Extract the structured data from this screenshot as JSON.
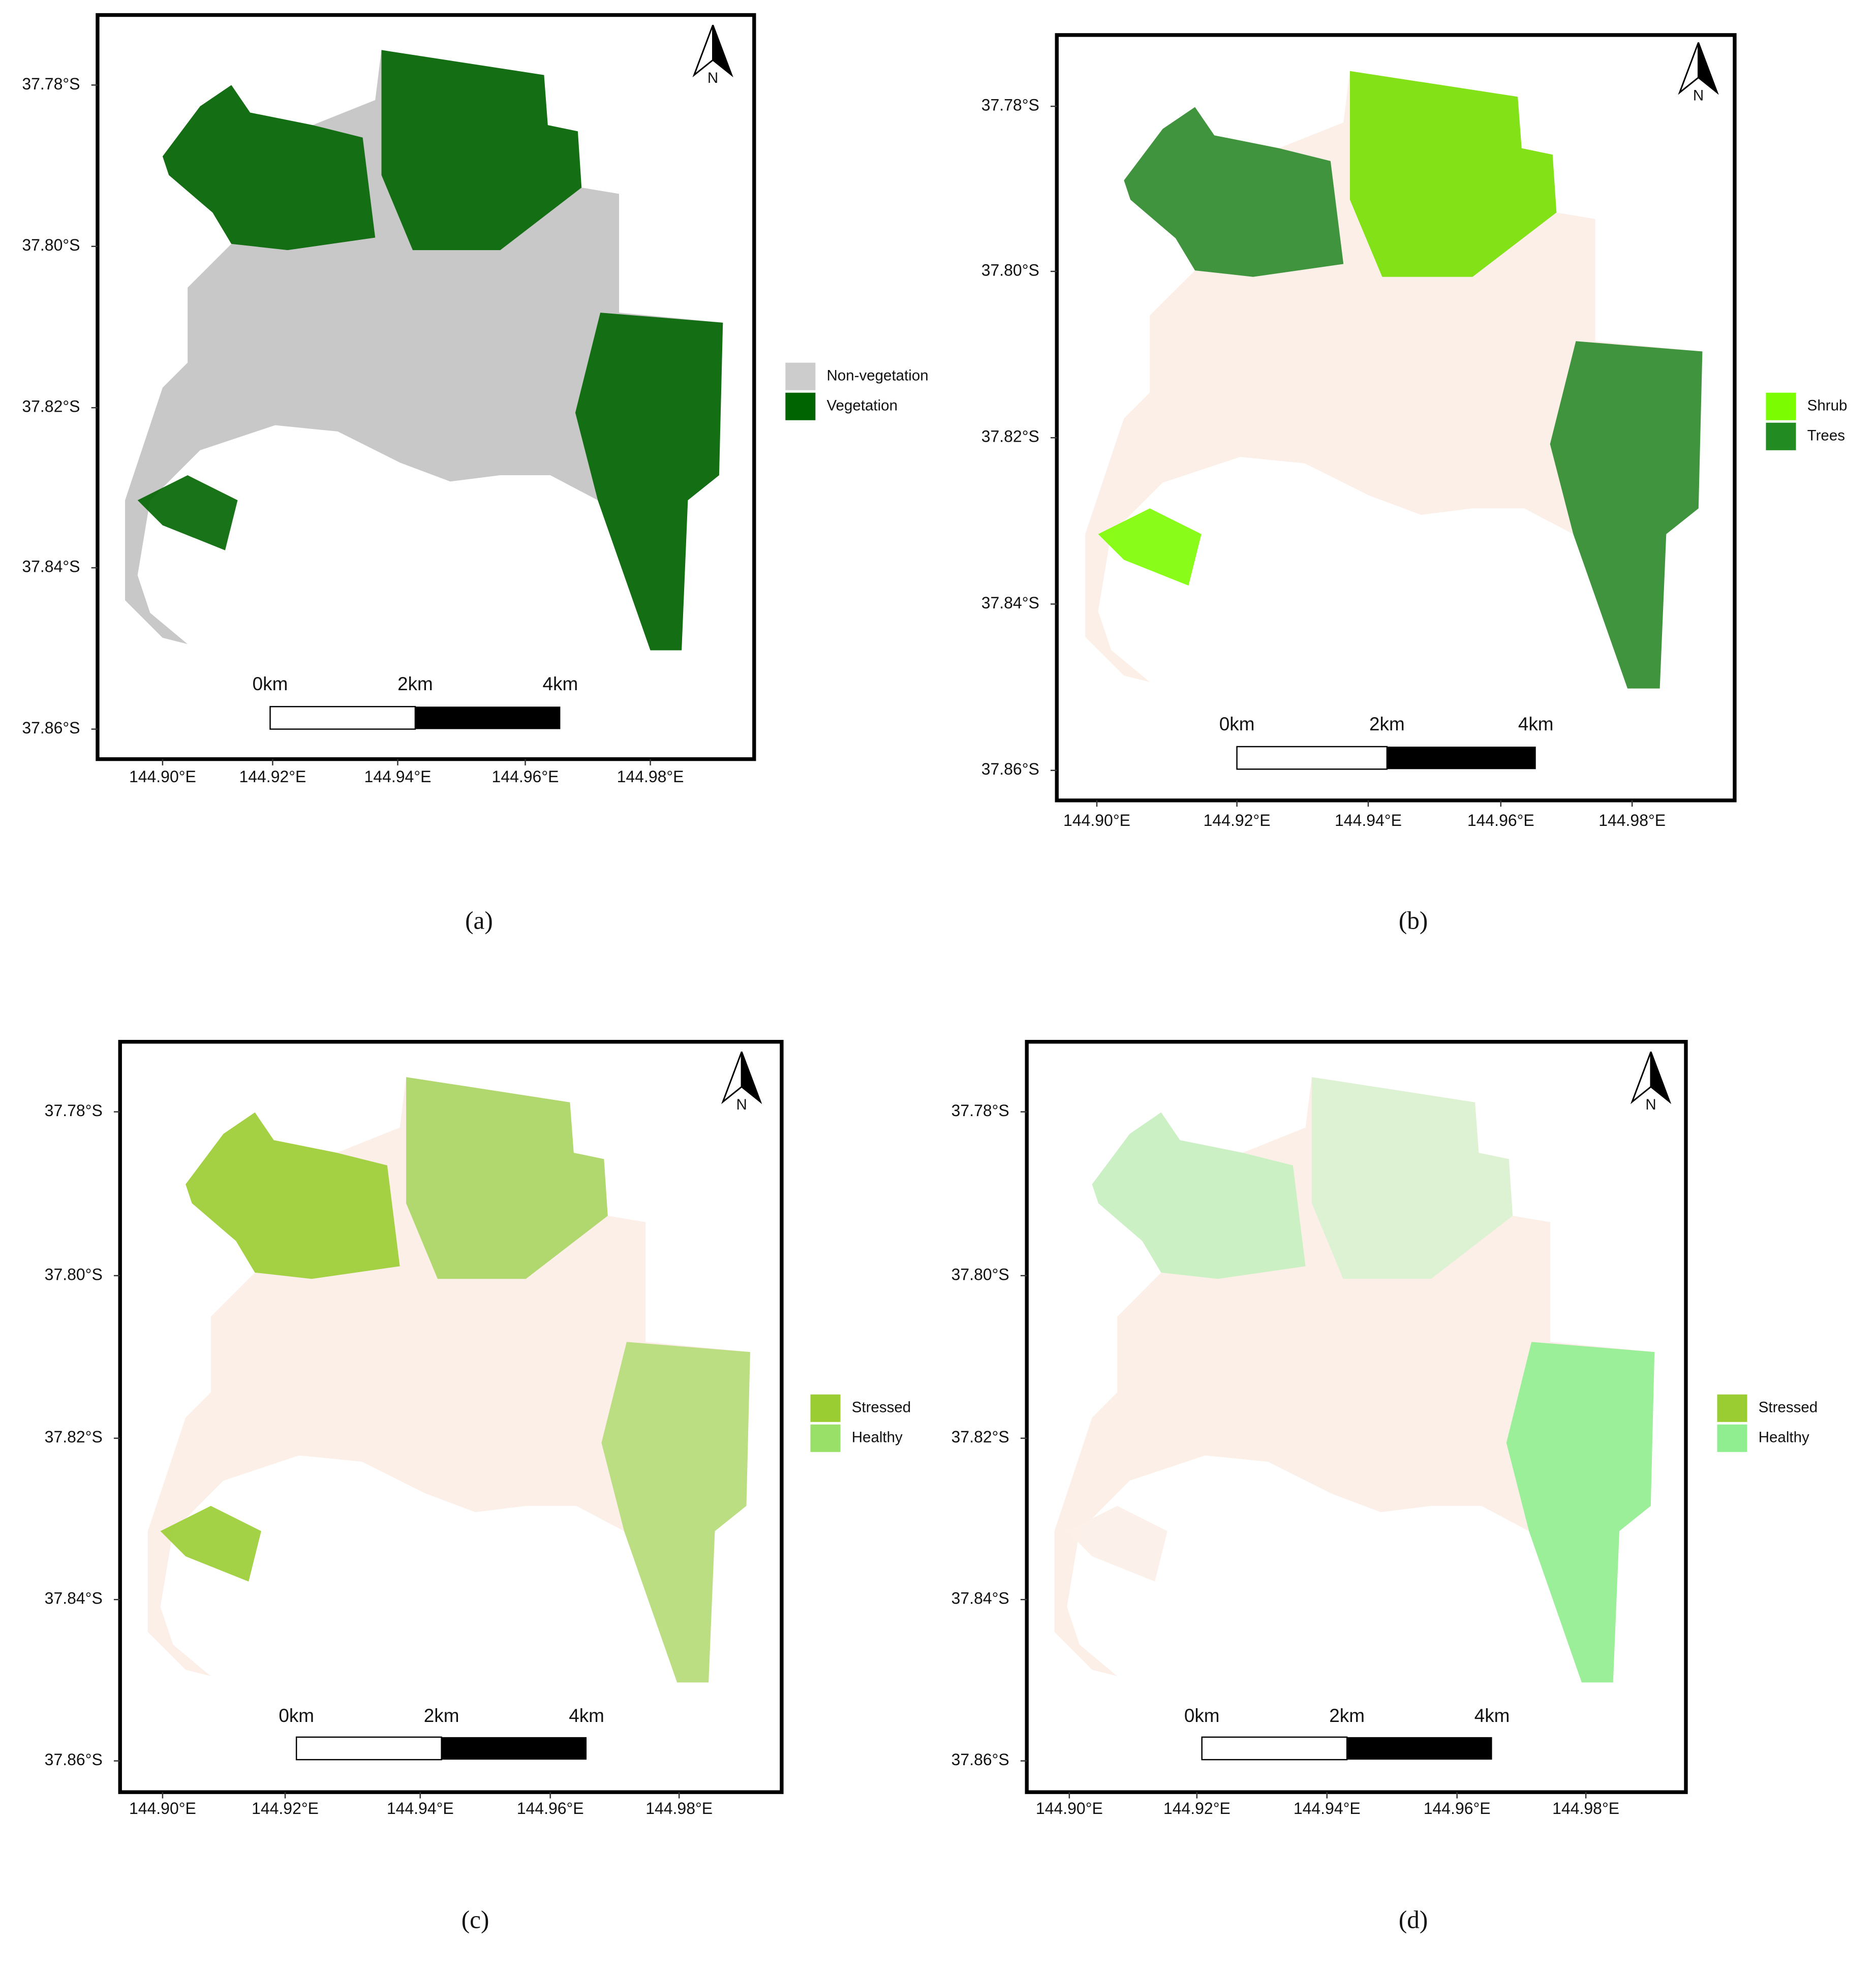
{
  "panels": [
    {
      "caption": "(a)",
      "legend": [
        "Non-vegetation",
        "Vegetation"
      ],
      "lat_labels": [
        "37.78°S",
        "37.80°S",
        "37.82°S",
        "37.84°S",
        "37.86°S"
      ],
      "lon_labels": [
        "144.90°E",
        "144.92°E",
        "144.94°E",
        "144.96°E",
        "144.98°E"
      ],
      "scale_labels": [
        "0km",
        "2km",
        "4km"
      ],
      "north": "N"
    },
    {
      "caption": "(b)",
      "legend": [
        "Shrub",
        "Trees"
      ],
      "lat_labels": [
        "37.78°S",
        "37.80°S",
        "37.82°S",
        "37.84°S",
        "37.86°S"
      ],
      "lon_labels": [
        "144.90°E",
        "144.92°E",
        "144.94°E",
        "144.96°E",
        "144.98°E"
      ],
      "scale_labels": [
        "0km",
        "2km",
        "4km"
      ],
      "north": "N"
    },
    {
      "caption": "(c)",
      "legend": [
        "Stressed",
        "Healthy"
      ],
      "lat_labels": [
        "37.78°S",
        "37.80°S",
        "37.82°S",
        "37.84°S",
        "37.86°S"
      ],
      "lon_labels": [
        "144.90°E",
        "144.92°E",
        "144.94°E",
        "144.96°E",
        "144.98°E"
      ],
      "scale_labels": [
        "0km",
        "2km",
        "4km"
      ],
      "north": "N"
    },
    {
      "caption": "(d)",
      "legend": [
        "Stressed",
        "Healthy"
      ],
      "lat_labels": [
        "37.78°S",
        "37.80°S",
        "37.82°S",
        "37.84°S",
        "37.86°S"
      ],
      "lon_labels": [
        "144.90°E",
        "144.92°E",
        "144.94°E",
        "144.96°E",
        "144.98°E"
      ],
      "scale_labels": [
        "0km",
        "2km",
        "4km"
      ],
      "north": "N"
    }
  ]
}
